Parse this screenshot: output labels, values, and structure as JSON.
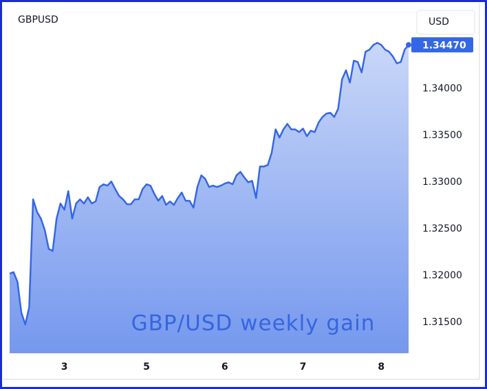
{
  "chart_data": {
    "type": "area",
    "title": "GBPUSD",
    "currency_button": "USD",
    "annotation": "GBP/USD weekly gain",
    "color": "#3467e6",
    "categories": [
      null,
      null,
      null,
      null,
      null,
      null,
      null,
      null,
      null,
      null,
      null,
      null,
      null,
      null,
      "3",
      null,
      null,
      null,
      null,
      null,
      null,
      null,
      null,
      null,
      null,
      null,
      null,
      null,
      null,
      null,
      null,
      null,
      null,
      null,
      null,
      "5",
      null,
      null,
      null,
      null,
      null,
      null,
      null,
      null,
      null,
      null,
      null,
      null,
      null,
      null,
      null,
      null,
      null,
      null,
      null,
      "6",
      null,
      null,
      null,
      null,
      null,
      null,
      null,
      null,
      null,
      null,
      null,
      null,
      null,
      null,
      null,
      null,
      null,
      null,
      null,
      "7",
      null,
      null,
      null,
      null,
      null,
      null,
      null,
      null,
      null,
      null,
      null,
      null,
      null,
      null,
      null,
      null,
      null,
      null,
      null,
      "8",
      null,
      null,
      null,
      null,
      null,
      null,
      null
    ],
    "values": [
      1.32023,
      1.32038,
      1.31935,
      1.31604,
      1.31479,
      1.31663,
      1.32817,
      1.32684,
      1.32611,
      1.32486,
      1.32287,
      1.32265,
      1.32611,
      1.32773,
      1.32706,
      1.32905,
      1.32611,
      1.32773,
      1.32817,
      1.32773,
      1.32839,
      1.32773,
      1.32795,
      1.32949,
      1.32978,
      1.32964,
      1.33008,
      1.32927,
      1.32853,
      1.32817,
      1.32765,
      1.32765,
      1.32817,
      1.32817,
      1.32927,
      1.32978,
      1.32964,
      1.32875,
      1.32802,
      1.32853,
      1.32758,
      1.32795,
      1.32758,
      1.32831,
      1.3289,
      1.32802,
      1.32802,
      1.32728,
      1.32949,
      1.33074,
      1.33037,
      1.32949,
      1.32964,
      1.32949,
      1.32964,
      1.32986,
      1.33,
      1.32978,
      1.33074,
      1.33111,
      1.33052,
      1.33,
      1.33015,
      1.32831,
      1.33169,
      1.33169,
      1.33184,
      1.33316,
      1.33566,
      1.33478,
      1.33566,
      1.33625,
      1.33566,
      1.33566,
      1.33537,
      1.33574,
      1.33493,
      1.33552,
      1.33537,
      1.3364,
      1.33699,
      1.33735,
      1.33743,
      1.33699,
      1.33787,
      1.34103,
      1.34198,
      1.34066,
      1.34301,
      1.34287,
      1.34176,
      1.34397,
      1.34419,
      1.3447,
      1.34492,
      1.3447,
      1.34419,
      1.34397,
      1.34345,
      1.34272,
      1.34287,
      1.34419,
      1.3447
    ],
    "last_label": {
      "value": 1.3447,
      "label": "1.34470"
    },
    "ylim": [
      1.3117,
      1.3484
    ],
    "yticks": [
      {
        "value": 1.315,
        "label": "1.31500"
      },
      {
        "value": 1.32,
        "label": "1.32000"
      },
      {
        "value": 1.325,
        "label": "1.32500"
      },
      {
        "value": 1.33,
        "label": "1.33000"
      },
      {
        "value": 1.335,
        "label": "1.33500"
      },
      {
        "value": 1.34,
        "label": "1.34000"
      }
    ]
  }
}
